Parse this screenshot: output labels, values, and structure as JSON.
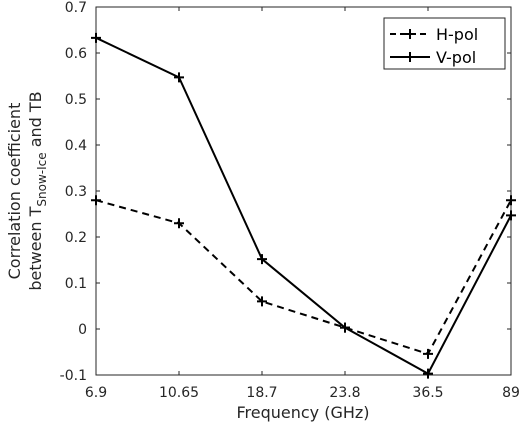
{
  "chart_data": {
    "type": "line",
    "categories": [
      "6.9",
      "10.65",
      "18.7",
      "23.8",
      "36.5",
      "89"
    ],
    "series": [
      {
        "name": "H-pol",
        "values": [
          0.28,
          0.23,
          0.06,
          0.003,
          -0.054,
          0.28
        ],
        "line_style": "dashed",
        "color": "#000000"
      },
      {
        "name": "V-pol",
        "values": [
          0.633,
          0.547,
          0.152,
          0.003,
          -0.097,
          0.247
        ],
        "line_style": "solid",
        "color": "#000000"
      }
    ],
    "xlabel": "Frequency (GHz)",
    "ylabel": {
      "line1": "Correlation coefficient",
      "line2_prefix": "between T",
      "line2_subscript": "Snow-Ice",
      "line2_suffix": " and TB"
    },
    "ylim": [
      -0.1,
      0.7
    ],
    "yticks": [
      "-0.1",
      "0",
      "0.1",
      "0.2",
      "0.3",
      "0.4",
      "0.5",
      "0.6",
      "0.7"
    ],
    "grid": false,
    "legend_position": "top-right"
  }
}
